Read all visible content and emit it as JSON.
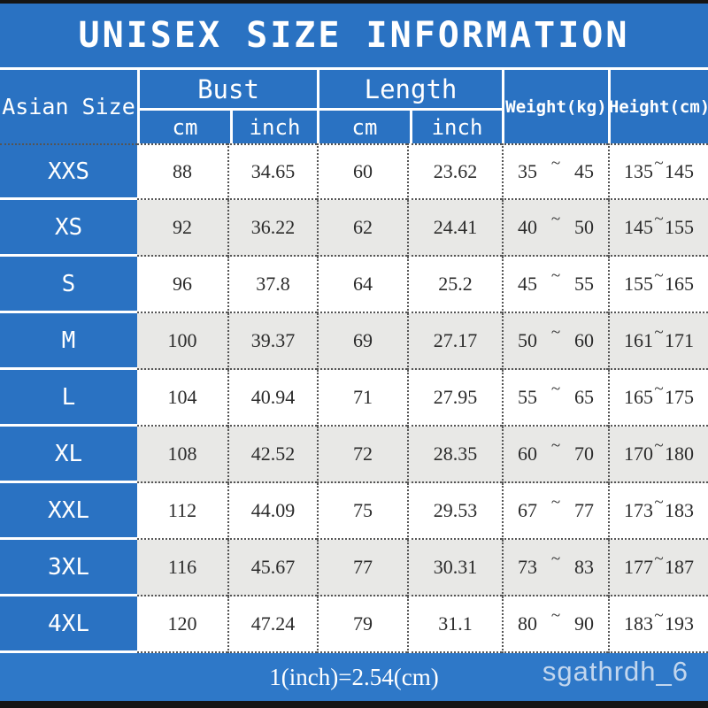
{
  "title": "UNISEX SIZE INFORMATION",
  "header": {
    "size_col": "Asian Size",
    "bust_label": "Bust",
    "length_label": "Length",
    "unit_cm": "cm",
    "unit_inch": "inch",
    "weight_label": "Weight(kg)",
    "height_label": "Height(cm)",
    "tilde": "~"
  },
  "footer": {
    "note": "1(inch)=2.54(cm)",
    "watermark": "sgathrdh_6"
  },
  "colors": {
    "blue": "#2a72c2",
    "footer_blue": "#2e78c8",
    "alt_row": "#e8e8e6",
    "edge_bar": "#151515",
    "text": "#2b2b2b"
  },
  "chart_data": {
    "type": "table",
    "title": "UNISEX SIZE INFORMATION",
    "columns": [
      "Asian Size",
      "Bust cm",
      "Bust inch",
      "Length cm",
      "Length inch",
      "Weight(kg)",
      "Height(cm)"
    ],
    "rows": [
      {
        "size": "XXS",
        "bust_cm": "88",
        "bust_inch": "34.65",
        "length_cm": "60",
        "length_inch": "23.62",
        "weight_min": "35",
        "weight_max": "45",
        "height_min": "135",
        "height_max": "145"
      },
      {
        "size": "XS",
        "bust_cm": "92",
        "bust_inch": "36.22",
        "length_cm": "62",
        "length_inch": "24.41",
        "weight_min": "40",
        "weight_max": "50",
        "height_min": "145",
        "height_max": "155"
      },
      {
        "size": "S",
        "bust_cm": "96",
        "bust_inch": "37.8",
        "length_cm": "64",
        "length_inch": "25.2",
        "weight_min": "45",
        "weight_max": "55",
        "height_min": "155",
        "height_max": "165"
      },
      {
        "size": "M",
        "bust_cm": "100",
        "bust_inch": "39.37",
        "length_cm": "69",
        "length_inch": "27.17",
        "weight_min": "50",
        "weight_max": "60",
        "height_min": "161",
        "height_max": "171"
      },
      {
        "size": "L",
        "bust_cm": "104",
        "bust_inch": "40.94",
        "length_cm": "71",
        "length_inch": "27.95",
        "weight_min": "55",
        "weight_max": "65",
        "height_min": "165",
        "height_max": "175"
      },
      {
        "size": "XL",
        "bust_cm": "108",
        "bust_inch": "42.52",
        "length_cm": "72",
        "length_inch": "28.35",
        "weight_min": "60",
        "weight_max": "70",
        "height_min": "170",
        "height_max": "180"
      },
      {
        "size": "XXL",
        "bust_cm": "112",
        "bust_inch": "44.09",
        "length_cm": "75",
        "length_inch": "29.53",
        "weight_min": "67",
        "weight_max": "77",
        "height_min": "173",
        "height_max": "183"
      },
      {
        "size": "3XL",
        "bust_cm": "116",
        "bust_inch": "45.67",
        "length_cm": "77",
        "length_inch": "30.31",
        "weight_min": "73",
        "weight_max": "83",
        "height_min": "177",
        "height_max": "187"
      },
      {
        "size": "4XL",
        "bust_cm": "120",
        "bust_inch": "47.24",
        "length_cm": "79",
        "length_inch": "31.1",
        "weight_min": "80",
        "weight_max": "90",
        "height_min": "183",
        "height_max": "193"
      }
    ],
    "note": "1(inch)=2.54(cm)"
  }
}
